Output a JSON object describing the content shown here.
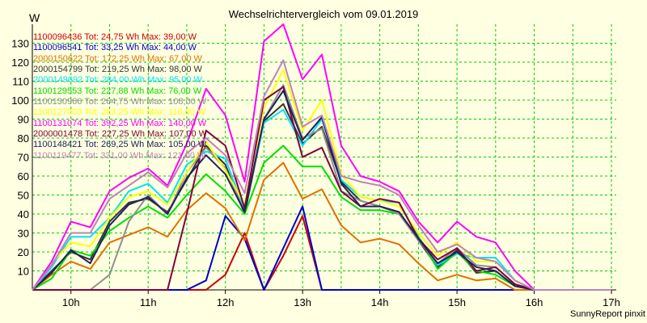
{
  "chart_data": {
    "type": "line",
    "title": "Wechselrichtervergleich vom 09.01.2019",
    "ylabel": "W",
    "footer": "SunnyReport pinxit",
    "ylim": [
      0,
      140
    ],
    "yticks": [
      10,
      20,
      30,
      40,
      50,
      60,
      70,
      80,
      90,
      100,
      110,
      120,
      130
    ],
    "xlim": [
      9.5,
      17.0625
    ],
    "xticks": [
      {
        "x": 10,
        "label": "10h"
      },
      {
        "x": 11,
        "label": "11h"
      },
      {
        "x": 12,
        "label": "12h"
      },
      {
        "x": 13,
        "label": "13h"
      },
      {
        "x": 14,
        "label": "14h"
      },
      {
        "x": 15,
        "label": "15h"
      },
      {
        "x": 16,
        "label": "16h"
      },
      {
        "x": 17,
        "label": "17h"
      }
    ],
    "grid": true,
    "x": [
      9.5,
      9.75,
      10,
      10.25,
      10.5,
      10.75,
      11,
      11.25,
      11.5,
      11.75,
      12,
      12.25,
      12.5,
      12.75,
      13,
      13.25,
      13.5,
      13.75,
      14,
      14.25,
      14.5,
      14.75,
      15,
      15.25,
      15.5,
      15.75,
      16,
      16.25,
      16.5,
      16.75,
      17
    ],
    "series": [
      {
        "name": "1100096436 Tot: 24,75 Wh Max: 39,00 W",
        "color": "#cc0000",
        "values": [
          0,
          0,
          0,
          0,
          0,
          0,
          0,
          0,
          0,
          0,
          8,
          30,
          0,
          18,
          39,
          0,
          0,
          0,
          0,
          0,
          0,
          0,
          0,
          0,
          0,
          0,
          0,
          0,
          0,
          0,
          0
        ]
      },
      {
        "name": "1100096541 Tot: 33,25 Wh Max: 44,00 W",
        "color": "#0000cc",
        "values": [
          0,
          0,
          0,
          0,
          0,
          0,
          0,
          0,
          0,
          5,
          39,
          27,
          0,
          22,
          44,
          0,
          0,
          0,
          0,
          0,
          0,
          0,
          0,
          0,
          0,
          0,
          0,
          0,
          0,
          0,
          0
        ]
      },
      {
        "name": "2000150622 Tot: 172,25 Wh Max: 67,00 W",
        "color": "#e07000",
        "values": [
          0,
          8,
          15,
          11,
          25,
          29,
          33,
          28,
          42,
          51,
          43,
          26,
          58,
          67,
          48,
          53,
          34,
          25,
          27,
          24,
          14,
          5,
          8,
          5,
          6,
          0,
          0,
          0,
          0,
          0,
          0
        ]
      },
      {
        "name": "2000154799 Tot: 219,25 Wh Max: 98,00 W",
        "color": "#333333",
        "values": [
          0,
          10,
          20,
          16,
          36,
          46,
          48,
          41,
          58,
          76,
          66,
          40,
          89,
          98,
          77,
          86,
          57,
          47,
          44,
          41,
          26,
          12,
          21,
          9,
          10,
          2,
          0,
          0,
          0,
          0,
          0
        ]
      },
      {
        "name": "2000149692 Tot: 284,00 Wh Max: 95,00 W",
        "color": "#00e0ff",
        "values": [
          0,
          12,
          28,
          28,
          38,
          52,
          56,
          46,
          66,
          73,
          69,
          42,
          88,
          95,
          76,
          90,
          58,
          49,
          47,
          46,
          28,
          13,
          19,
          17,
          17,
          5,
          0,
          0,
          0,
          0,
          0
        ]
      },
      {
        "name": "1100129553 Tot: 227,88 Wh Max: 76,00 W",
        "color": "#00dd00",
        "values": [
          0,
          6,
          21,
          18,
          31,
          38,
          44,
          38,
          50,
          61,
          52,
          40,
          67,
          76,
          65,
          65,
          49,
          42,
          42,
          40,
          28,
          11,
          20,
          10,
          8,
          2,
          0,
          0,
          0,
          0,
          0
        ]
      },
      {
        "name": "1100130966 Tot: 264,75 Wh Max: 108,00 W",
        "color": "#909090",
        "values": [
          0,
          0,
          0,
          0,
          8,
          36,
          50,
          40,
          62,
          75,
          64,
          41,
          90,
          108,
          80,
          85,
          52,
          47,
          44,
          40,
          26,
          14,
          22,
          13,
          12,
          3,
          0,
          0,
          0,
          0,
          0
        ]
      },
      {
        "name": "1100127003 Tot: 283,25 Wh Max: 116,00 W",
        "color": "#ffff00",
        "values": [
          0,
          14,
          25,
          23,
          38,
          49,
          52,
          45,
          62,
          78,
          63,
          45,
          96,
          116,
          84,
          100,
          61,
          49,
          47,
          44,
          30,
          18,
          25,
          15,
          15,
          5,
          0,
          0,
          0,
          0,
          0
        ]
      },
      {
        "name": "1100131074 Tot: 392,25 Wh Max: 140,00 W",
        "color": "#ff00ff",
        "values": [
          0,
          15,
          36,
          33,
          52,
          59,
          64,
          55,
          77,
          106,
          92,
          57,
          131,
          140,
          111,
          124,
          76,
          60,
          57,
          52,
          36,
          25,
          36,
          28,
          25,
          10,
          0,
          0,
          0,
          0,
          0
        ]
      },
      {
        "name": "2000001478 Tot: 227,25 Wh Max: 107,00 W",
        "color": "#800040",
        "values": [
          0,
          0,
          0,
          0,
          0,
          0,
          0,
          0,
          40,
          84,
          76,
          43,
          100,
          107,
          70,
          75,
          52,
          44,
          48,
          46,
          27,
          16,
          22,
          10,
          12,
          3,
          0,
          0,
          0,
          0,
          0
        ]
      },
      {
        "name": "1100148421 Tot: 269,25 Wh Max: 105,00 W",
        "color": "#202060",
        "values": [
          0,
          9,
          21,
          14,
          34,
          45,
          49,
          40,
          59,
          71,
          61,
          41,
          90,
          105,
          79,
          91,
          56,
          44,
          44,
          41,
          27,
          14,
          20,
          12,
          10,
          2,
          0,
          0,
          0,
          0,
          0
        ]
      },
      {
        "name": "1100119477 Tot: 331,00 Wh Max: 121,00 W",
        "color": "#c080c0",
        "values": [
          0,
          13,
          30,
          30,
          48,
          55,
          62,
          54,
          72,
          80,
          71,
          51,
          102,
          121,
          86,
          92,
          60,
          57,
          55,
          50,
          34,
          20,
          24,
          17,
          15,
          5,
          0,
          0,
          0,
          0,
          0
        ]
      }
    ]
  }
}
